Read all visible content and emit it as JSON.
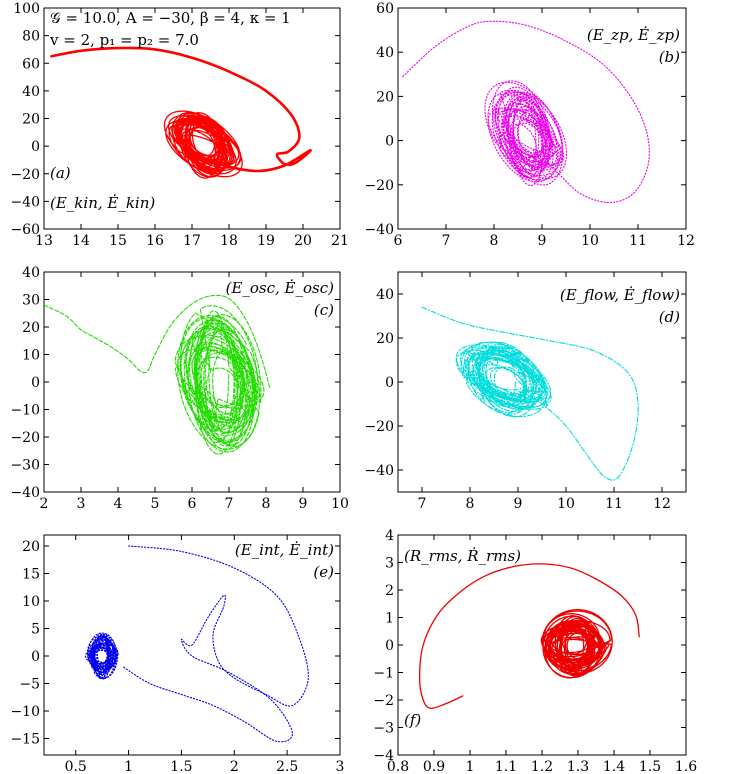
{
  "figure": {
    "title": ""
  },
  "chart_data": [
    {
      "id": "a",
      "type": "line",
      "panel_label": "(a)",
      "axis_label": "(E_kin, Ė_kin)",
      "params_line1": "𝒢 = 10.0, A = −30, β = 4, κ = 1",
      "params_line2": "v = 2, p₁ = p₂ = 7.0",
      "xlim": [
        13,
        21
      ],
      "ylim": [
        -60,
        100
      ],
      "xticks": [
        13,
        14,
        15,
        16,
        17,
        18,
        19,
        20,
        21
      ],
      "yticks": [
        -60,
        -40,
        -20,
        0,
        20,
        40,
        60,
        80,
        100
      ],
      "color": "#ff0000",
      "style": "solid",
      "transient": [
        [
          13.2,
          65
        ],
        [
          14.0,
          69
        ],
        [
          15.0,
          71
        ],
        [
          16.0,
          70
        ],
        [
          17.0,
          64
        ],
        [
          18.0,
          54
        ],
        [
          19.0,
          40
        ],
        [
          19.7,
          22
        ],
        [
          19.9,
          6
        ],
        [
          19.6,
          -4
        ],
        [
          19.3,
          -6
        ],
        [
          19.5,
          -13
        ],
        [
          19.8,
          -12
        ],
        [
          20.2,
          -3
        ],
        [
          19.5,
          -14
        ],
        [
          18.8,
          -18
        ],
        [
          18.0,
          -15
        ],
        [
          17.5,
          -10
        ]
      ],
      "attractor": {
        "cx": 17.3,
        "cy": 2,
        "rx": 0.95,
        "ry": 21,
        "tilt": -0.55
      }
    },
    {
      "id": "b",
      "type": "line",
      "panel_label": "(b)",
      "axis_label": "(E_zp, Ė_zp)",
      "xlim": [
        6,
        12
      ],
      "ylim": [
        -40,
        60
      ],
      "xticks": [
        6,
        7,
        8,
        9,
        10,
        11,
        12
      ],
      "yticks": [
        -40,
        -20,
        0,
        20,
        40,
        60
      ],
      "color": "#ee00ee",
      "style": "dotted",
      "transient": [
        [
          6.1,
          29
        ],
        [
          6.8,
          43
        ],
        [
          7.5,
          52
        ],
        [
          8.0,
          54
        ],
        [
          8.7,
          52
        ],
        [
          9.5,
          45
        ],
        [
          10.3,
          34
        ],
        [
          10.9,
          18
        ],
        [
          11.2,
          2
        ],
        [
          11.2,
          -12
        ],
        [
          10.9,
          -24
        ],
        [
          10.4,
          -28
        ],
        [
          9.8,
          -24
        ],
        [
          9.3,
          -14
        ],
        [
          8.8,
          -4
        ]
      ],
      "attractor": {
        "cx": 8.7,
        "cy": 2,
        "rx": 0.75,
        "ry": 19,
        "tilt": -0.5
      }
    },
    {
      "id": "c",
      "type": "line",
      "panel_label": "(c)",
      "axis_label": "(E_osc, Ė_osc)",
      "xlim": [
        2,
        10
      ],
      "ylim": [
        -40,
        40
      ],
      "xticks": [
        2,
        3,
        4,
        5,
        6,
        7,
        8,
        9,
        10
      ],
      "yticks": [
        -40,
        -30,
        -20,
        -10,
        0,
        10,
        20,
        30,
        40
      ],
      "color": "#22dd00",
      "style": "dashed",
      "transient": [
        [
          2.0,
          28
        ],
        [
          2.6,
          24
        ],
        [
          3.0,
          19
        ],
        [
          3.4,
          16
        ],
        [
          3.9,
          12
        ],
        [
          4.3,
          8
        ],
        [
          4.6,
          4
        ],
        [
          4.8,
          4
        ],
        [
          5.0,
          10
        ],
        [
          5.5,
          22
        ],
        [
          6.2,
          30
        ],
        [
          6.9,
          31
        ],
        [
          7.4,
          24
        ],
        [
          7.8,
          12
        ],
        [
          8.1,
          -2
        ]
      ],
      "attractor": {
        "cx": 6.8,
        "cy": 0,
        "rx": 1.05,
        "ry": 22,
        "tilt": -0.25
      }
    },
    {
      "id": "d",
      "type": "line",
      "panel_label": "(d)",
      "axis_label": "(E_flow, Ė_flow)",
      "xlim": [
        6.5,
        12.5
      ],
      "ylim": [
        -50,
        50
      ],
      "xticks": [
        7,
        8,
        9,
        10,
        11,
        12
      ],
      "yticks": [
        -40,
        -20,
        0,
        20,
        40
      ],
      "color": "#00dddd",
      "style": "dashdot",
      "transient": [
        [
          7.0,
          34
        ],
        [
          7.8,
          27
        ],
        [
          8.6,
          23
        ],
        [
          9.6,
          19
        ],
        [
          10.6,
          14
        ],
        [
          11.3,
          4
        ],
        [
          11.5,
          -10
        ],
        [
          11.4,
          -28
        ],
        [
          11.1,
          -43
        ],
        [
          10.8,
          -43
        ],
        [
          10.4,
          -32
        ],
        [
          10.0,
          -20
        ],
        [
          9.5,
          -10
        ],
        [
          9.0,
          -4
        ]
      ],
      "attractor": {
        "cx": 8.7,
        "cy": 2,
        "rx": 0.85,
        "ry": 15,
        "tilt": -0.45
      }
    },
    {
      "id": "e",
      "type": "line",
      "panel_label": "(e)",
      "axis_label": "(E_int, Ė_int)",
      "xlim": [
        0.2,
        3.0
      ],
      "ylim": [
        -18,
        22
      ],
      "xticks": [
        0.5,
        1,
        1.5,
        2,
        2.5,
        3
      ],
      "xtick_labels": [
        "0.5",
        "1",
        "1.5",
        "2",
        "2.5",
        "3"
      ],
      "yticks": [
        -15,
        -10,
        -5,
        0,
        5,
        10,
        15,
        20
      ],
      "color": "#0000ee",
      "style": "dotted",
      "transient": [
        [
          1.0,
          20
        ],
        [
          1.5,
          19
        ],
        [
          2.0,
          16
        ],
        [
          2.4,
          11
        ],
        [
          2.6,
          4
        ],
        [
          2.7,
          -4
        ],
        [
          2.55,
          -9
        ],
        [
          2.3,
          -7
        ],
        [
          2.0,
          -4
        ],
        [
          1.85,
          -1
        ],
        [
          1.8,
          4
        ],
        [
          1.9,
          9
        ],
        [
          1.9,
          11
        ],
        [
          1.75,
          7
        ],
        [
          1.6,
          2
        ],
        [
          1.5,
          3
        ],
        [
          1.6,
          0
        ],
        [
          1.95,
          -3
        ],
        [
          2.35,
          -8
        ],
        [
          2.55,
          -14
        ],
        [
          2.4,
          -15.5
        ],
        [
          2.1,
          -12
        ],
        [
          1.8,
          -9
        ],
        [
          1.5,
          -7
        ],
        [
          1.2,
          -5
        ],
        [
          0.95,
          -2
        ]
      ],
      "attractor": {
        "cx": 0.75,
        "cy": 0,
        "rx": 0.14,
        "ry": 3.5,
        "tilt": 0.0
      }
    },
    {
      "id": "f",
      "type": "line",
      "panel_label": "(f)",
      "axis_label": "(R_rms, Ṙ_rms)",
      "xlim": [
        0.8,
        1.6
      ],
      "ylim": [
        -4,
        4
      ],
      "xticks": [
        0.8,
        0.9,
        1,
        1.1,
        1.2,
        1.3,
        1.4,
        1.5,
        1.6
      ],
      "xtick_labels": [
        "0.8",
        "0.9",
        "1",
        "1.1",
        "1.2",
        "1.3",
        "1.4",
        "1.5",
        "1.6"
      ],
      "yticks": [
        -4,
        -3,
        -2,
        -1,
        0,
        1,
        2,
        3,
        4
      ],
      "color": "#ee0000",
      "style": "solid",
      "transient": [
        [
          0.98,
          -1.85
        ],
        [
          0.93,
          -2.15
        ],
        [
          0.89,
          -2.3
        ],
        [
          0.87,
          -2.0
        ],
        [
          0.86,
          -1.2
        ],
        [
          0.87,
          0.0
        ],
        [
          0.91,
          1.1
        ],
        [
          0.97,
          1.9
        ],
        [
          1.04,
          2.5
        ],
        [
          1.12,
          2.85
        ],
        [
          1.2,
          2.95
        ],
        [
          1.28,
          2.8
        ],
        [
          1.35,
          2.4
        ],
        [
          1.42,
          1.8
        ],
        [
          1.46,
          1.1
        ],
        [
          1.47,
          0.3
        ]
      ],
      "attractor": {
        "cx": 1.29,
        "cy": 0.0,
        "rx": 0.09,
        "ry": 1.1,
        "tilt": 0.0
      }
    }
  ]
}
